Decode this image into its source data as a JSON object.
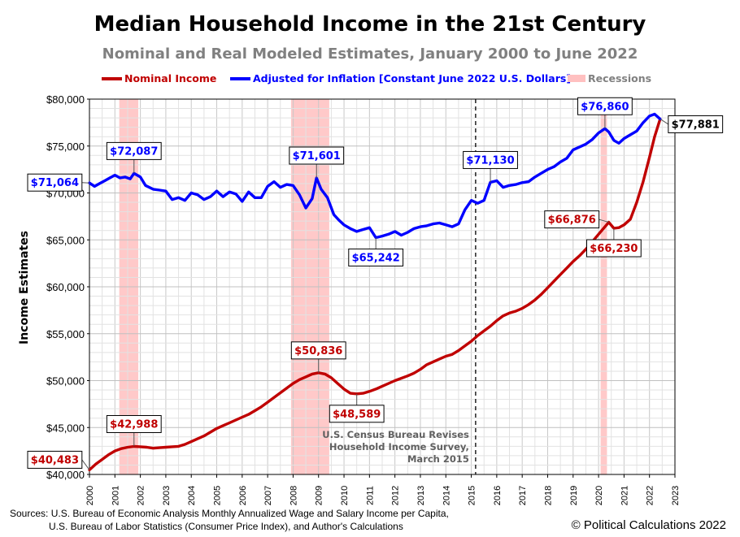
{
  "chart_data": {
    "type": "line",
    "title": "Median Household Income in the 21st Century",
    "subtitle": "Nominal and Real Modeled Estimates, January 2000 to June 2022",
    "ylabel": "Income Estimates",
    "ylim": [
      40000,
      80000
    ],
    "xlim": [
      2000,
      2023
    ],
    "y_ticks": [
      {
        "value": 40000,
        "label": "$40,000"
      },
      {
        "value": 45000,
        "label": "$45,000"
      },
      {
        "value": 50000,
        "label": "$50,000"
      },
      {
        "value": 55000,
        "label": "$55,000"
      },
      {
        "value": 60000,
        "label": "$60,000"
      },
      {
        "value": 65000,
        "label": "$65,000"
      },
      {
        "value": 70000,
        "label": "$70,000"
      },
      {
        "value": 75000,
        "label": "$75,000"
      },
      {
        "value": 80000,
        "label": "$80,000"
      }
    ],
    "x_ticks": [
      "2000",
      "2001",
      "2002",
      "2003",
      "2004",
      "2005",
      "2006",
      "2007",
      "2008",
      "2009",
      "2010",
      "2011",
      "2012",
      "2013",
      "2014",
      "2015",
      "2016",
      "2017",
      "2018",
      "2019",
      "2020",
      "2021",
      "2022",
      "2023"
    ],
    "grid": true,
    "legend": {
      "placement": "top",
      "items": [
        {
          "label": "Nominal Income",
          "color": "#c00000",
          "kind": "line"
        },
        {
          "label": "Adjusted for Inflation [Constant June 2022 U.S. Dollars]",
          "color": "#0000ff",
          "kind": "line"
        },
        {
          "label": "Recessions",
          "color": "#ffc0c0",
          "kind": "band"
        }
      ]
    },
    "recessions": [
      [
        2001.17,
        2001.92
      ],
      [
        2007.92,
        2009.42
      ],
      [
        2020.08,
        2020.33
      ]
    ],
    "series": [
      {
        "name": "Nominal Income",
        "color": "#c00000",
        "points": [
          [
            2000.0,
            40483
          ],
          [
            2000.25,
            41100
          ],
          [
            2000.5,
            41600
          ],
          [
            2000.75,
            42100
          ],
          [
            2001.0,
            42500
          ],
          [
            2001.25,
            42750
          ],
          [
            2001.5,
            42900
          ],
          [
            2001.75,
            42988
          ],
          [
            2002.0,
            42950
          ],
          [
            2002.25,
            42900
          ],
          [
            2002.5,
            42800
          ],
          [
            2002.75,
            42850
          ],
          [
            2003.0,
            42900
          ],
          [
            2003.25,
            42950
          ],
          [
            2003.5,
            43000
          ],
          [
            2003.75,
            43200
          ],
          [
            2004.0,
            43500
          ],
          [
            2004.25,
            43800
          ],
          [
            2004.5,
            44100
          ],
          [
            2004.75,
            44500
          ],
          [
            2005.0,
            44900
          ],
          [
            2005.25,
            45200
          ],
          [
            2005.5,
            45500
          ],
          [
            2005.75,
            45800
          ],
          [
            2006.0,
            46100
          ],
          [
            2006.25,
            46400
          ],
          [
            2006.5,
            46800
          ],
          [
            2006.75,
            47200
          ],
          [
            2007.0,
            47700
          ],
          [
            2007.25,
            48200
          ],
          [
            2007.5,
            48700
          ],
          [
            2007.75,
            49200
          ],
          [
            2008.0,
            49700
          ],
          [
            2008.25,
            50100
          ],
          [
            2008.5,
            50400
          ],
          [
            2008.75,
            50700
          ],
          [
            2009.0,
            50836
          ],
          [
            2009.25,
            50700
          ],
          [
            2009.5,
            50300
          ],
          [
            2009.75,
            49700
          ],
          [
            2010.0,
            49100
          ],
          [
            2010.25,
            48650
          ],
          [
            2010.5,
            48589
          ],
          [
            2010.75,
            48650
          ],
          [
            2011.0,
            48850
          ],
          [
            2011.25,
            49100
          ],
          [
            2011.5,
            49400
          ],
          [
            2011.75,
            49700
          ],
          [
            2012.0,
            50000
          ],
          [
            2012.25,
            50250
          ],
          [
            2012.5,
            50500
          ],
          [
            2012.75,
            50800
          ],
          [
            2013.0,
            51200
          ],
          [
            2013.25,
            51700
          ],
          [
            2013.5,
            52000
          ],
          [
            2013.75,
            52300
          ],
          [
            2014.0,
            52600
          ],
          [
            2014.25,
            52800
          ],
          [
            2014.5,
            53200
          ],
          [
            2014.75,
            53700
          ],
          [
            2015.0,
            54200
          ],
          [
            2015.25,
            54800
          ],
          [
            2015.5,
            55300
          ],
          [
            2015.75,
            55800
          ],
          [
            2016.0,
            56400
          ],
          [
            2016.25,
            56900
          ],
          [
            2016.5,
            57200
          ],
          [
            2016.75,
            57400
          ],
          [
            2017.0,
            57700
          ],
          [
            2017.25,
            58100
          ],
          [
            2017.5,
            58600
          ],
          [
            2017.75,
            59200
          ],
          [
            2018.0,
            59900
          ],
          [
            2018.25,
            60600
          ],
          [
            2018.5,
            61300
          ],
          [
            2018.75,
            62000
          ],
          [
            2019.0,
            62700
          ],
          [
            2019.25,
            63300
          ],
          [
            2019.5,
            64000
          ],
          [
            2019.75,
            64800
          ],
          [
            2020.0,
            65600
          ],
          [
            2020.25,
            66400
          ],
          [
            2020.4,
            66876
          ],
          [
            2020.6,
            66230
          ],
          [
            2020.8,
            66300
          ],
          [
            2021.0,
            66600
          ],
          [
            2021.25,
            67200
          ],
          [
            2021.5,
            69000
          ],
          [
            2021.75,
            71200
          ],
          [
            2022.0,
            73800
          ],
          [
            2022.2,
            76000
          ],
          [
            2022.42,
            77881
          ]
        ]
      },
      {
        "name": "Adjusted for Inflation [Constant June 2022 U.S. Dollars]",
        "color": "#0000ff",
        "points": [
          [
            2000.0,
            71064
          ],
          [
            2000.2,
            70700
          ],
          [
            2000.4,
            71000
          ],
          [
            2000.6,
            71300
          ],
          [
            2000.8,
            71600
          ],
          [
            2001.0,
            71900
          ],
          [
            2001.2,
            71600
          ],
          [
            2001.4,
            71700
          ],
          [
            2001.6,
            71500
          ],
          [
            2001.75,
            72087
          ],
          [
            2002.0,
            71700
          ],
          [
            2002.2,
            70800
          ],
          [
            2002.5,
            70400
          ],
          [
            2002.75,
            70300
          ],
          [
            2003.0,
            70200
          ],
          [
            2003.25,
            69300
          ],
          [
            2003.5,
            69500
          ],
          [
            2003.75,
            69200
          ],
          [
            2004.0,
            70000
          ],
          [
            2004.25,
            69800
          ],
          [
            2004.5,
            69300
          ],
          [
            2004.75,
            69600
          ],
          [
            2005.0,
            70200
          ],
          [
            2005.25,
            69600
          ],
          [
            2005.5,
            70100
          ],
          [
            2005.75,
            69900
          ],
          [
            2006.0,
            69100
          ],
          [
            2006.25,
            70100
          ],
          [
            2006.5,
            69500
          ],
          [
            2006.75,
            69500
          ],
          [
            2007.0,
            70700
          ],
          [
            2007.25,
            71200
          ],
          [
            2007.5,
            70600
          ],
          [
            2007.75,
            70900
          ],
          [
            2008.0,
            70800
          ],
          [
            2008.25,
            69800
          ],
          [
            2008.5,
            68400
          ],
          [
            2008.75,
            69400
          ],
          [
            2008.92,
            71601
          ],
          [
            2009.1,
            70400
          ],
          [
            2009.35,
            69500
          ],
          [
            2009.6,
            67700
          ],
          [
            2009.8,
            67100
          ],
          [
            2010.0,
            66600
          ],
          [
            2010.25,
            66200
          ],
          [
            2010.5,
            65900
          ],
          [
            2010.75,
            66100
          ],
          [
            2011.0,
            66300
          ],
          [
            2011.25,
            65242
          ],
          [
            2011.5,
            65400
          ],
          [
            2011.75,
            65600
          ],
          [
            2012.0,
            65900
          ],
          [
            2012.25,
            65500
          ],
          [
            2012.5,
            65800
          ],
          [
            2012.75,
            66200
          ],
          [
            2013.0,
            66400
          ],
          [
            2013.25,
            66500
          ],
          [
            2013.5,
            66700
          ],
          [
            2013.75,
            66800
          ],
          [
            2014.0,
            66600
          ],
          [
            2014.25,
            66400
          ],
          [
            2014.5,
            66700
          ],
          [
            2014.75,
            68200
          ],
          [
            2015.0,
            69200
          ],
          [
            2015.25,
            68900
          ],
          [
            2015.5,
            69200
          ],
          [
            2015.75,
            71130
          ],
          [
            2016.0,
            71300
          ],
          [
            2016.25,
            70600
          ],
          [
            2016.5,
            70800
          ],
          [
            2016.75,
            70900
          ],
          [
            2017.0,
            71100
          ],
          [
            2017.25,
            71200
          ],
          [
            2017.5,
            71700
          ],
          [
            2017.75,
            72100
          ],
          [
            2018.0,
            72500
          ],
          [
            2018.25,
            72800
          ],
          [
            2018.5,
            73300
          ],
          [
            2018.75,
            73700
          ],
          [
            2019.0,
            74600
          ],
          [
            2019.25,
            74900
          ],
          [
            2019.5,
            75200
          ],
          [
            2019.75,
            75700
          ],
          [
            2020.0,
            76400
          ],
          [
            2020.25,
            76860
          ],
          [
            2020.4,
            76500
          ],
          [
            2020.6,
            75600
          ],
          [
            2020.8,
            75300
          ],
          [
            2021.0,
            75800
          ],
          [
            2021.25,
            76200
          ],
          [
            2021.5,
            76600
          ],
          [
            2021.75,
            77500
          ],
          [
            2022.0,
            78200
          ],
          [
            2022.2,
            78400
          ],
          [
            2022.42,
            77881
          ]
        ]
      }
    ],
    "callouts": [
      {
        "text": "$71,064",
        "series": 1,
        "x": 2000.0,
        "y": 71064,
        "pos": "edge-left"
      },
      {
        "text": "$72,087",
        "series": 1,
        "x": 2001.75,
        "y": 72087,
        "pos": "above"
      },
      {
        "text": "$71,601",
        "series": 1,
        "x": 2008.92,
        "y": 71601,
        "pos": "above"
      },
      {
        "text": "$65,242",
        "series": 1,
        "x": 2011.25,
        "y": 65242,
        "pos": "below"
      },
      {
        "text": "$71,130",
        "series": 1,
        "x": 2015.75,
        "y": 71130,
        "pos": "above"
      },
      {
        "text": "$76,860",
        "series": 1,
        "x": 2020.25,
        "y": 76860,
        "pos": "above"
      },
      {
        "text": "$77,881",
        "series": 2,
        "x": 2022.42,
        "y": 77881,
        "pos": "right"
      },
      {
        "text": "$40,483",
        "series": 0,
        "x": 2000.0,
        "y": 40483,
        "pos": "edge-left"
      },
      {
        "text": "$42,988",
        "series": 0,
        "x": 2001.75,
        "y": 42988,
        "pos": "above"
      },
      {
        "text": "$50,836",
        "series": 0,
        "x": 2009.0,
        "y": 50836,
        "pos": "above"
      },
      {
        "text": "$48,589",
        "series": 0,
        "x": 2010.5,
        "y": 48589,
        "pos": "below"
      },
      {
        "text": "$66,876",
        "series": 0,
        "x": 2020.4,
        "y": 66876,
        "pos": "left"
      },
      {
        "text": "$66,230",
        "series": 0,
        "x": 2020.6,
        "y": 66230,
        "pos": "below"
      }
    ],
    "annotations": [
      {
        "lines": [
          "U.S. Census Bureau Revises",
          "Household Income Survey,",
          "March 2015"
        ],
        "x": 2015.17
      }
    ]
  },
  "footer": {
    "sources_line1": "Sources: U.S. Bureau of Economic Analysis Monthly Annualized Wage and Salary Income per Capita,",
    "sources_line2": "U.S. Bureau of Labor Statistics (Consumer Price Index), and Author's Calculations",
    "copyright": "© Political Calculations 2022"
  }
}
